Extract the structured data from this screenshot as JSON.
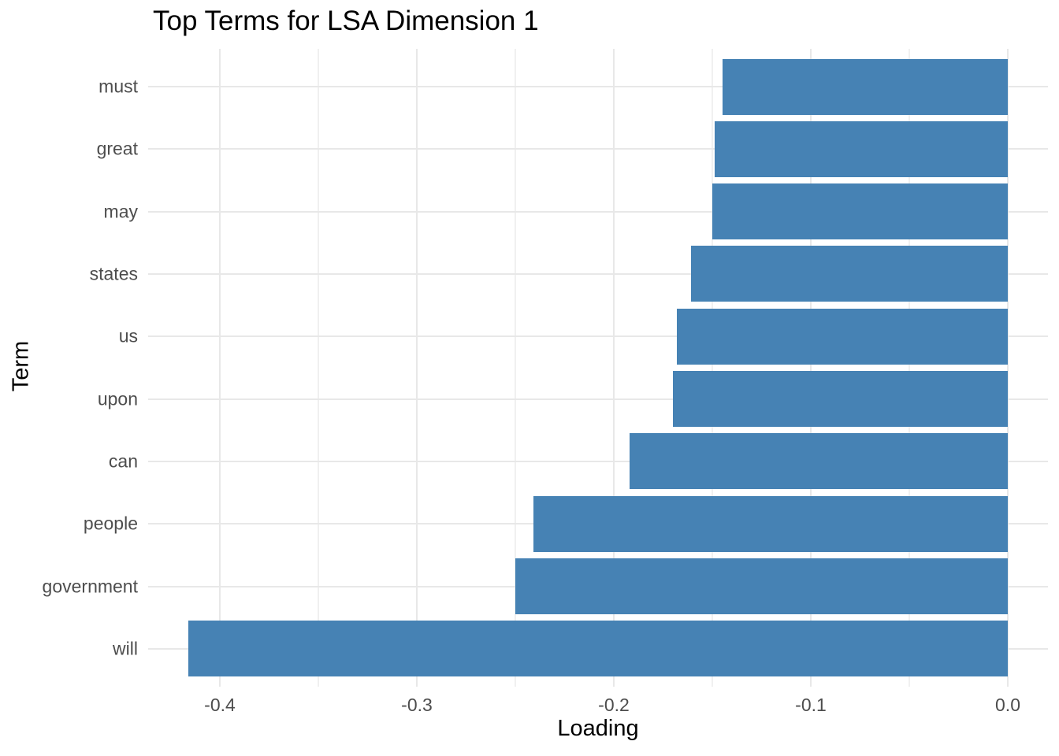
{
  "title": "Top Terms for LSA Dimension 1",
  "colors": {
    "bar": "#4682B4",
    "grid_major": "#E8E8E8",
    "grid_minor": "#F0F0F0",
    "tick_label": "#4D4D4D",
    "axis_text": "#000000",
    "background": "#FFFFFF"
  },
  "chart_data": {
    "type": "bar",
    "orientation": "horizontal",
    "title": "Top Terms for LSA Dimension 1",
    "xlabel": "Loading",
    "ylabel": "Term",
    "categories": [
      "must",
      "great",
      "may",
      "states",
      "us",
      "upon",
      "can",
      "people",
      "government",
      "will"
    ],
    "values": [
      -0.145,
      -0.149,
      -0.15,
      -0.161,
      -0.168,
      -0.17,
      -0.192,
      -0.241,
      -0.25,
      -0.416
    ],
    "bar_color": "#4682B4",
    "xlim": [
      -0.4364,
      0.0204
    ],
    "x_major_ticks": [
      -0.4,
      -0.3,
      -0.2,
      -0.1,
      0.0
    ],
    "x_tick_labels": [
      "-0.4",
      "-0.3",
      "-0.2",
      "-0.1",
      "0.0"
    ],
    "x_minor_ticks": [
      -0.35,
      -0.25,
      -0.15,
      -0.05
    ],
    "grid": true,
    "legend": false
  }
}
